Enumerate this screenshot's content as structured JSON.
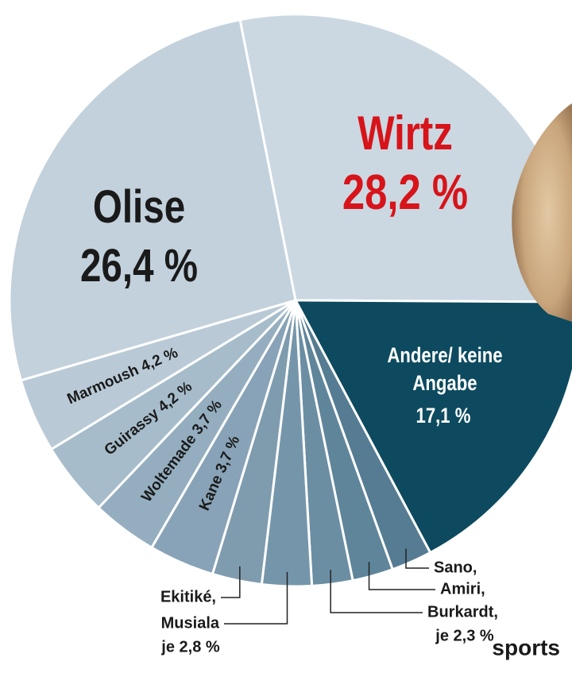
{
  "chart_data": {
    "type": "pie",
    "categories": [
      "Wirtz",
      "Andere/ keine Angabe",
      "Sano,",
      "Amiri,",
      "Burkardt,",
      "Musiala",
      "Ekitiké,",
      "Kane",
      "Woltemade",
      "Guirassy",
      "Marmoush",
      "Olise"
    ],
    "values": [
      28.2,
      17.1,
      2.3,
      2.3,
      2.3,
      2.8,
      2.8,
      3.7,
      3.7,
      4.2,
      4.2,
      26.4
    ],
    "value_labels": [
      "28,2 %",
      "17,1 %",
      null,
      null,
      null,
      null,
      null,
      "3,7 %",
      "3,7 %",
      "4,2 %",
      "4,2 %",
      "26,4 %"
    ],
    "colors": [
      "#cbd8e2",
      "#0d4a5f",
      "#557c93",
      "#5f859b",
      "#6b8ea3",
      "#7596aa",
      "#7f9caf",
      "#88a3b7",
      "#94aec0",
      "#a6bccb",
      "#b9cad6",
      "#c2d1dc"
    ],
    "annotations": [
      "je 2,3 %",
      "je 2,8 %"
    ],
    "watermark": "sports"
  }
}
